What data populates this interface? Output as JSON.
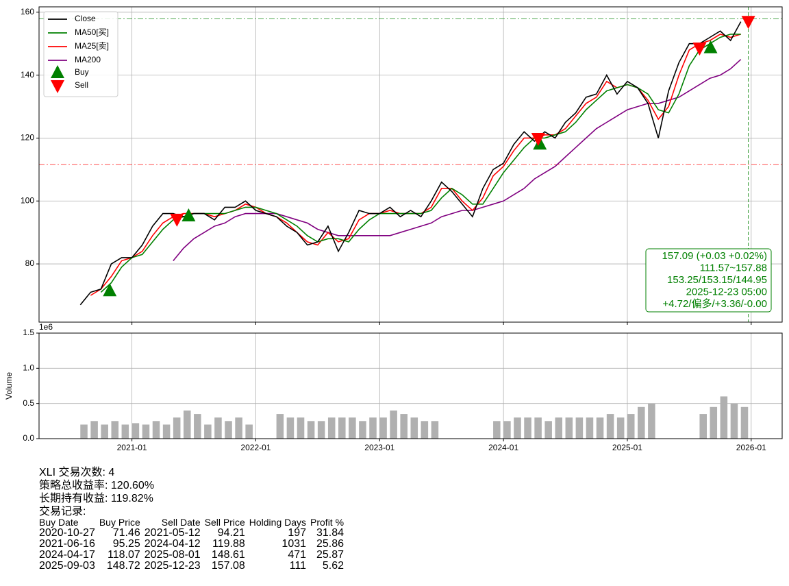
{
  "chart_data": [
    {
      "type": "line",
      "x": [
        "2020-08",
        "2020-09",
        "2020-10",
        "2020-11",
        "2020-12",
        "2021-01",
        "2021-02",
        "2021-03",
        "2021-04",
        "2021-05",
        "2021-06",
        "2021-07",
        "2021-08",
        "2021-09",
        "2021-10",
        "2021-11",
        "2021-12",
        "2022-01",
        "2022-02",
        "2022-03",
        "2022-04",
        "2022-05",
        "2022-06",
        "2022-07",
        "2022-08",
        "2022-09",
        "2022-10",
        "2022-11",
        "2022-12",
        "2023-01",
        "2023-02",
        "2023-03",
        "2023-04",
        "2023-05",
        "2023-06",
        "2023-07",
        "2023-08",
        "2023-09",
        "2023-10",
        "2023-11",
        "2023-12",
        "2024-01",
        "2024-02",
        "2024-03",
        "2024-04",
        "2024-05",
        "2024-06",
        "2024-07",
        "2024-08",
        "2024-09",
        "2024-10",
        "2024-11",
        "2024-12",
        "2025-01",
        "2025-02",
        "2025-03",
        "2025-04",
        "2025-05",
        "2025-06",
        "2025-07",
        "2025-08",
        "2025-09",
        "2025-10",
        "2025-11",
        "2025-12"
      ],
      "series": [
        {
          "name": "Close",
          "color": "#000000",
          "values": [
            67,
            71,
            72,
            80,
            82,
            82,
            86,
            92,
            96,
            96,
            95,
            96,
            96,
            94,
            98,
            98,
            100,
            97,
            96,
            95,
            92,
            90,
            86,
            87,
            92,
            84,
            90,
            97,
            96,
            96,
            98,
            95,
            97,
            95,
            100,
            106,
            103,
            99,
            95,
            104,
            110,
            112,
            118,
            122,
            119,
            122,
            120,
            125,
            128,
            133,
            134,
            140,
            134,
            138,
            136,
            131,
            120,
            135,
            144,
            150,
            150,
            152,
            154,
            151,
            157
          ]
        },
        {
          "name": "MA50[买]",
          "color": "#008000",
          "values": [
            null,
            null,
            71,
            74,
            79,
            82,
            83,
            87,
            91,
            94,
            95,
            96,
            96,
            96,
            96,
            97,
            98,
            98,
            97,
            96,
            94,
            92,
            89,
            87,
            88,
            88,
            87,
            91,
            94,
            96,
            96,
            96,
            96,
            96,
            97,
            101,
            104,
            102,
            99,
            99,
            104,
            109,
            113,
            117,
            120,
            120,
            121,
            122,
            125,
            129,
            132,
            135,
            136,
            137,
            136,
            134,
            129,
            128,
            134,
            143,
            148,
            150,
            152,
            153,
            153
          ]
        },
        {
          "name": "MA25[卖]",
          "color": "#ff0000",
          "values": [
            null,
            70,
            72,
            76,
            81,
            82,
            84,
            89,
            93,
            95,
            96,
            96,
            96,
            95,
            96,
            97,
            99,
            98,
            96,
            95,
            93,
            90,
            87,
            86,
            90,
            87,
            88,
            94,
            96,
            96,
            97,
            96,
            96,
            96,
            98,
            104,
            104,
            100,
            97,
            101,
            108,
            111,
            116,
            120,
            120,
            121,
            121,
            123,
            127,
            131,
            133,
            138,
            136,
            137,
            136,
            132,
            126,
            130,
            140,
            148,
            150,
            151,
            153,
            152,
            153
          ]
        },
        {
          "name": "MA200",
          "color": "#800080",
          "values": [
            null,
            null,
            null,
            null,
            null,
            null,
            null,
            null,
            null,
            81,
            85,
            88,
            90,
            92,
            93,
            95,
            96,
            96,
            96,
            96,
            95,
            94,
            93,
            91,
            90,
            89,
            89,
            89,
            89,
            89,
            89,
            90,
            91,
            92,
            93,
            95,
            96,
            97,
            97,
            98,
            99,
            100,
            102,
            104,
            107,
            109,
            111,
            114,
            117,
            120,
            123,
            125,
            127,
            129,
            130,
            131,
            131,
            132,
            133,
            135,
            137,
            139,
            140,
            142,
            145
          ]
        }
      ],
      "buy": {
        "name": "Buy",
        "color": "#008000",
        "x": [
          "2020-10-27",
          "2021-06-16",
          "2024-04-17",
          "2025-09-03"
        ],
        "values": [
          71.46,
          95.25,
          118.07,
          148.72
        ]
      },
      "sell": {
        "name": "Sell",
        "color": "#ff0000",
        "x": [
          "2021-05-12",
          "2024-04-12",
          "2025-08-01",
          "2025-12-23"
        ],
        "values": [
          94.21,
          119.88,
          148.61,
          157.08
        ]
      },
      "hlines": [
        {
          "value": 157.88,
          "color": "#008000"
        },
        {
          "value": 111.57,
          "color": "#ff0000"
        }
      ],
      "vline": {
        "x": "2025-12-23",
        "color": "#008000"
      },
      "annotation": {
        "color": "#008000",
        "lines": [
          "157.09 (+0.03 +0.02%)",
          "111.57~157.88",
          "153.25/153.15/144.95",
          "2025-12-23 05:00",
          "+4.72/偏多/+3.36/-0.00"
        ]
      },
      "xlim": [
        "2020-04",
        "2026-04"
      ],
      "ylim": [
        61.5,
        161.7
      ],
      "yticks": [
        80,
        100,
        120,
        140,
        160
      ],
      "grid": true,
      "legend": "upper left"
    },
    {
      "type": "bar",
      "x": [
        "2020-08",
        "2020-09",
        "2020-10",
        "2020-11",
        "2020-12",
        "2021-01",
        "2021-02",
        "2021-03",
        "2021-04",
        "2021-05",
        "2021-06",
        "2021-07",
        "2021-08",
        "2021-09",
        "2021-10",
        "2021-11",
        "2021-12",
        "2022-01",
        "2022-02",
        "2022-03",
        "2022-04",
        "2022-05",
        "2022-06",
        "2022-07",
        "2022-08",
        "2022-09",
        "2022-10",
        "2022-11",
        "2022-12",
        "2023-01",
        "2023-02",
        "2023-03",
        "2023-04",
        "2023-05",
        "2023-06",
        "2023-07",
        "2023-08",
        "2023-09",
        "2023-10",
        "2023-11",
        "2023-12",
        "2024-01",
        "2024-02",
        "2024-03",
        "2024-04",
        "2024-05",
        "2024-06",
        "2024-07",
        "2024-08",
        "2024-09",
        "2024-10",
        "2024-11",
        "2024-12",
        "2025-01",
        "2025-02",
        "2025-03",
        "2025-04",
        "2025-05",
        "2025-06",
        "2025-07",
        "2025-08",
        "2025-09",
        "2025-10",
        "2025-11",
        "2025-12"
      ],
      "values": [
        0.2,
        0.25,
        0.2,
        0.25,
        0.2,
        0.22,
        0.2,
        0.25,
        0.2,
        0.3,
        0.4,
        0.35,
        0.2,
        0.3,
        0.25,
        0.3,
        0.2,
        null,
        null,
        0.35,
        0.3,
        0.3,
        0.25,
        0.25,
        0.3,
        0.3,
        0.3,
        0.25,
        0.3,
        0.3,
        0.4,
        0.35,
        0.3,
        0.25,
        0.25,
        null,
        null,
        null,
        null,
        null,
        0.25,
        0.25,
        0.3,
        0.3,
        0.3,
        0.25,
        0.3,
        0.3,
        0.3,
        0.3,
        0.3,
        0.35,
        0.3,
        0.35,
        0.45,
        0.5,
        null,
        null,
        null,
        null,
        0.35,
        0.45,
        0.6,
        0.5,
        0.45
      ],
      "color": "#b0b0b0",
      "ylabel": "Volume",
      "offset_label": "1e6",
      "xlim": [
        "2020-04",
        "2026-04"
      ],
      "ylim": [
        0,
        1.5
      ],
      "yticks": [
        {
          "value": 0,
          "label": "0.0"
        },
        0.5,
        {
          "value": 1,
          "label": "1.0"
        },
        1.5
      ],
      "xticks": [
        "2021-01",
        "2022-01",
        "2023-01",
        "2024-01",
        "2025-01",
        "2026-01"
      ],
      "grid": true
    }
  ],
  "report": {
    "lines": [
      "XLI 交易次数: 4",
      "策略总收益率: 120.60%",
      "长期持有收益: 119.82%",
      "交易记录:"
    ],
    "table": {
      "columns": [
        "Buy Date",
        "Buy Price",
        "Sell Date",
        "Sell Price",
        "Holding Days",
        "Profit %"
      ],
      "rows": [
        [
          "2020-10-27",
          "71.46",
          "2021-05-12",
          "94.21",
          "197",
          "31.84"
        ],
        [
          "2021-06-16",
          "95.25",
          "2024-04-12",
          "119.88",
          "1031",
          "25.86"
        ],
        [
          "2024-04-17",
          "118.07",
          "2025-08-01",
          "148.61",
          "471",
          "25.87"
        ],
        [
          "2025-09-03",
          "148.72",
          "2025-12-23",
          "157.08",
          "111",
          "5.62"
        ]
      ]
    }
  }
}
